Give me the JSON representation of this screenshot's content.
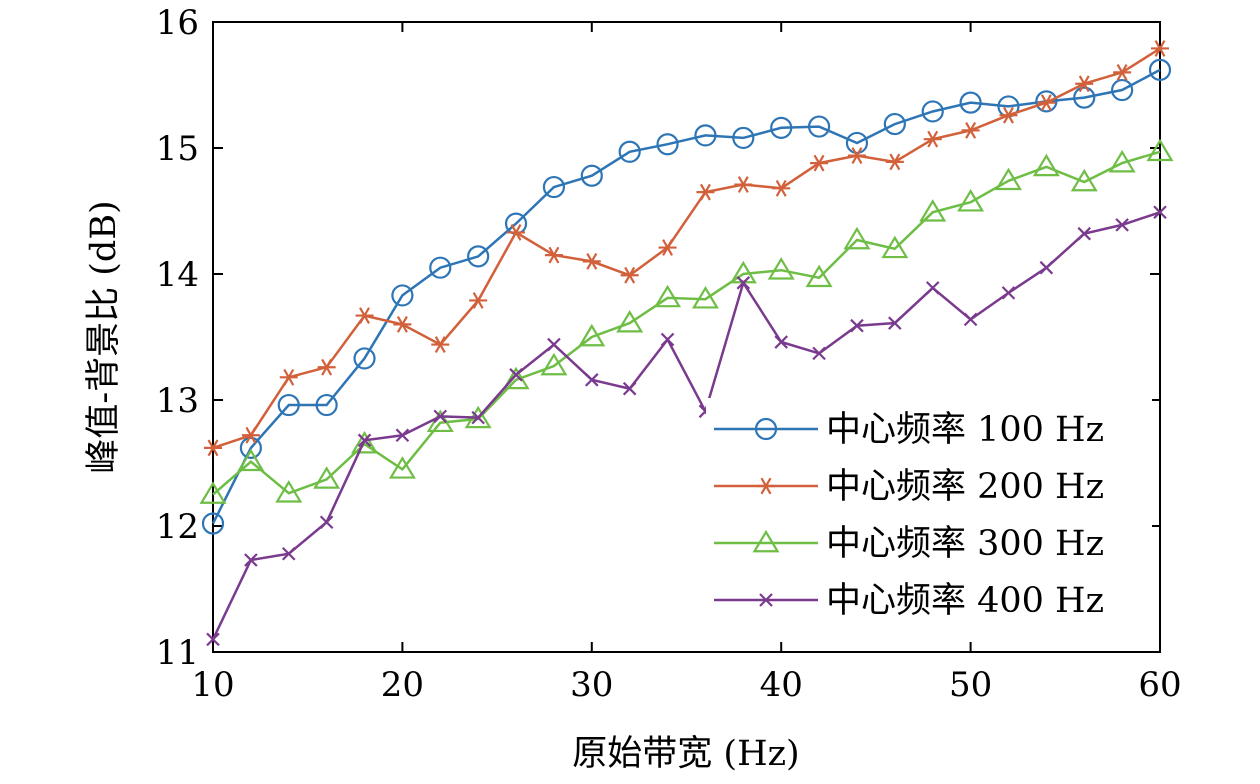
{
  "chart_data": {
    "type": "line",
    "title": "",
    "xlabel": "原始带宽 (Hz)",
    "ylabel": "峰值-背景比 (dB)",
    "xlim": [
      10,
      60
    ],
    "ylim": [
      11,
      16
    ],
    "xticks": [
      10,
      20,
      30,
      40,
      50,
      60
    ],
    "yticks": [
      11,
      12,
      13,
      14,
      15,
      16
    ],
    "grid": false,
    "legend_position": "lower-right",
    "x": [
      10,
      12,
      14,
      16,
      18,
      20,
      22,
      24,
      26,
      28,
      30,
      32,
      34,
      36,
      38,
      40,
      42,
      44,
      46,
      48,
      50,
      52,
      54,
      56,
      58,
      60
    ],
    "series": [
      {
        "name": "中心频率 100 Hz",
        "color": "#2e75b6",
        "marker": "circle",
        "values": [
          12.02,
          12.62,
          12.96,
          12.96,
          13.33,
          13.83,
          14.05,
          14.14,
          14.4,
          14.69,
          14.78,
          14.97,
          15.03,
          15.1,
          15.08,
          15.16,
          15.17,
          15.04,
          15.19,
          15.29,
          15.36,
          15.33,
          15.37,
          15.4,
          15.46,
          15.62
        ]
      },
      {
        "name": "中心频率 200 Hz",
        "color": "#d2603a",
        "marker": "asterisk",
        "values": [
          12.62,
          12.72,
          13.18,
          13.26,
          13.67,
          13.6,
          13.44,
          13.79,
          14.33,
          14.15,
          14.1,
          13.99,
          14.21,
          14.65,
          14.71,
          14.68,
          14.88,
          14.94,
          14.89,
          15.07,
          15.14,
          15.26,
          15.36,
          15.51,
          15.6,
          15.79
        ]
      },
      {
        "name": "中心频率 300 Hz",
        "color": "#6ebe46",
        "marker": "triangle",
        "values": [
          12.25,
          12.51,
          12.26,
          12.37,
          12.65,
          12.45,
          12.82,
          12.85,
          13.16,
          13.27,
          13.5,
          13.61,
          13.81,
          13.8,
          14.0,
          14.03,
          13.97,
          14.27,
          14.2,
          14.49,
          14.57,
          14.74,
          14.85,
          14.73,
          14.88,
          14.97
        ]
      },
      {
        "name": "中心频率 400 Hz",
        "color": "#7a3a8e",
        "marker": "x",
        "values": [
          11.1,
          11.73,
          11.78,
          12.03,
          12.68,
          12.72,
          12.87,
          12.86,
          13.2,
          13.44,
          13.16,
          13.09,
          13.48,
          12.91,
          13.93,
          13.46,
          13.37,
          13.59,
          13.61,
          13.89,
          13.64,
          13.85,
          14.05,
          14.32,
          14.39,
          14.49
        ]
      }
    ]
  }
}
